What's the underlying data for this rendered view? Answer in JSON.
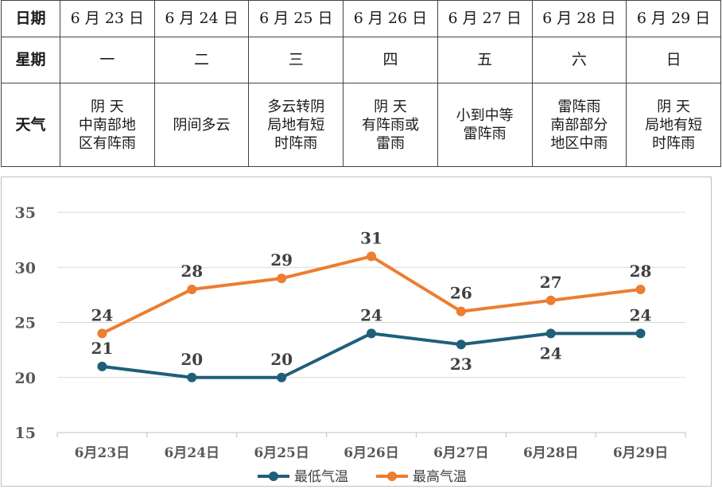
{
  "table": {
    "rows": [
      {
        "header": "日期",
        "cells": [
          "6 月 23 日",
          "6 月 24 日",
          "6 月 25 日",
          "6 月 26 日",
          "6 月 27 日",
          "6 月 28 日",
          "6 月 29 日"
        ]
      },
      {
        "header": "星期",
        "cells": [
          "一",
          "二",
          "三",
          "四",
          "五",
          "六",
          "日"
        ]
      },
      {
        "header": "天气",
        "cells": [
          "阴 天\n中南部地\n区有阵雨",
          "阴间多云",
          "多云转阴\n局地有短\n时阵雨",
          "阴 天\n有阵雨或\n雷雨",
          "小到中等\n雷阵雨",
          "雷阵雨\n南部部分\n地区中雨",
          "阴 天\n局地有短\n时阵雨"
        ]
      }
    ]
  },
  "chart_data": {
    "type": "line",
    "categories": [
      "6月23日",
      "6月24日",
      "6月25日",
      "6月26日",
      "6月27日",
      "6月28日",
      "6月29日"
    ],
    "series": [
      {
        "name": "最低气温",
        "values": [
          21,
          20,
          20,
          24,
          23,
          24,
          24
        ],
        "color": "#1f5f7a"
      },
      {
        "name": "最高气温",
        "values": [
          24,
          28,
          29,
          31,
          26,
          27,
          28
        ],
        "color": "#ed7d31"
      }
    ],
    "yticks": [
      15,
      20,
      25,
      30,
      35
    ],
    "ylim": [
      15,
      35
    ],
    "grid": true,
    "legend_position": "bottom",
    "data_labels": true
  }
}
